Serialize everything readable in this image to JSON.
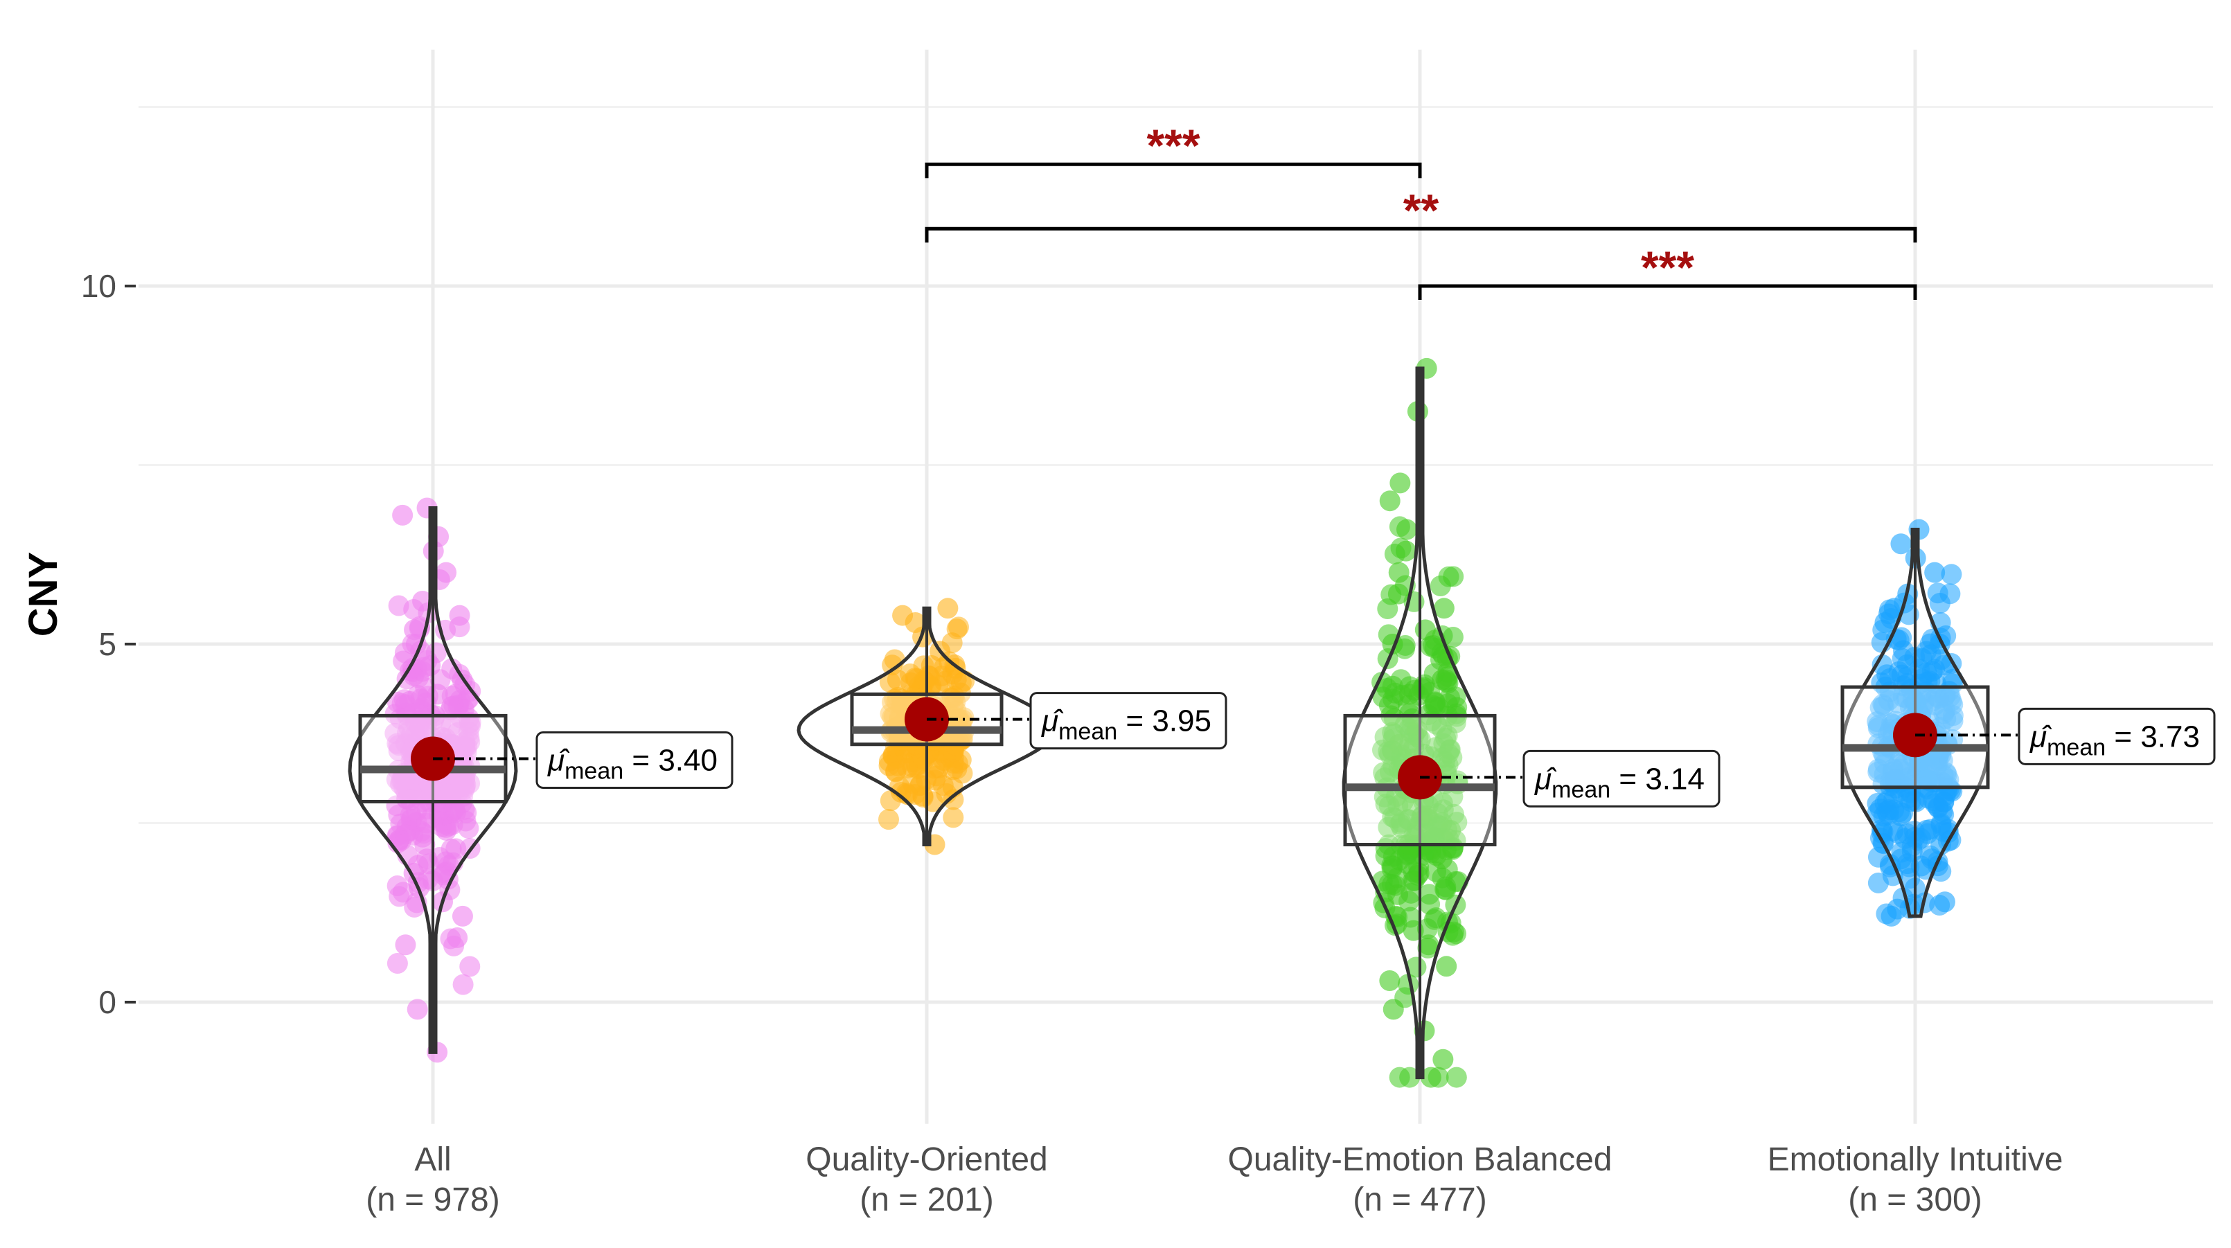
{
  "chart_data": {
    "type": "violin-box-scatter",
    "ylabel": "CNY",
    "xlabel": "",
    "ylim": [
      -1.7,
      13.3
    ],
    "yticks": [
      0,
      5,
      10
    ],
    "grid": true,
    "colors": {
      "All": "#ee82ee",
      "Quality-Oriented": "#ffb31a",
      "Quality-Emotion Balanced": "#44cc22",
      "Emotionally Intuitive": "#1aa3ff",
      "mean_marker": "#a50000",
      "significance": "#a50f0f"
    },
    "groups": [
      {
        "name": "All",
        "n_label": "(n = 978)",
        "n": 978,
        "mean": 3.4,
        "mean_label": "= 3.40",
        "median": 3.25,
        "q1": 2.8,
        "q3": 4.0,
        "min": -0.7,
        "max": 6.9,
        "points": [
          6.9,
          6.8,
          6.5,
          6.3,
          6.0,
          5.9,
          5.6,
          5.4,
          5.2,
          5.0,
          4.9,
          4.7,
          4.5,
          4.3,
          4.2,
          4.0,
          3.9,
          3.7,
          3.6,
          3.5,
          3.4,
          3.3,
          3.2,
          3.1,
          3.0,
          2.9,
          2.8,
          2.7,
          2.5,
          2.4,
          2.2,
          2.0,
          1.8,
          1.6,
          1.4,
          1.2,
          0.9,
          0.8,
          -0.1,
          -0.7
        ]
      },
      {
        "name": "Quality-Oriented",
        "n_label": "(n = 201)",
        "n": 201,
        "mean": 3.95,
        "mean_label": "= 3.95",
        "median": 3.8,
        "q1": 3.6,
        "q3": 4.3,
        "min": 2.2,
        "max": 5.5,
        "points": [
          5.5,
          5.4,
          5.3,
          5.1,
          4.9,
          4.7,
          4.5,
          4.4,
          4.2,
          4.1,
          4.0,
          3.9,
          3.8,
          3.7,
          3.6,
          3.5,
          3.4,
          3.3,
          3.1,
          3.0,
          2.9,
          2.8,
          2.2
        ]
      },
      {
        "name": "Quality-Emotion Balanced",
        "n_label": "(n = 477)",
        "n": 477,
        "mean": 3.14,
        "mean_label": "= 3.14",
        "median": 3.0,
        "q1": 2.2,
        "q3": 4.0,
        "min": -1.05,
        "max": 8.85,
        "points": [
          8.85,
          8.25,
          7.25,
          7.0,
          6.6,
          6.3,
          6.0,
          5.7,
          5.5,
          5.2,
          5.0,
          4.8,
          4.5,
          4.3,
          4.0,
          3.8,
          3.6,
          3.4,
          3.2,
          3.0,
          2.8,
          2.6,
          2.4,
          2.2,
          2.0,
          1.8,
          1.5,
          1.2,
          1.0,
          0.8,
          0.5,
          0.3,
          -0.1,
          -0.4,
          -0.8,
          -1.05
        ]
      },
      {
        "name": "Emotionally Intuitive",
        "n_label": "(n = 300)",
        "n": 300,
        "mean": 3.73,
        "mean_label": "= 3.73",
        "median": 3.55,
        "q1": 3.0,
        "q3": 4.4,
        "min": 1.2,
        "max": 6.6,
        "points": [
          6.6,
          6.4,
          6.2,
          6.0,
          5.7,
          5.5,
          5.3,
          5.0,
          4.8,
          4.6,
          4.4,
          4.2,
          4.0,
          3.8,
          3.7,
          3.6,
          3.5,
          3.4,
          3.3,
          3.1,
          3.0,
          2.8,
          2.6,
          2.4,
          2.2,
          2.0,
          1.9,
          1.4,
          1.3,
          1.2
        ]
      }
    ],
    "comparisons": [
      {
        "from": "Quality-Oriented",
        "to": "Quality-Emotion Balanced",
        "y": 11.7,
        "label": "***"
      },
      {
        "from": "Quality-Oriented",
        "to": "Emotionally Intuitive",
        "y": 10.8,
        "label": "**"
      },
      {
        "from": "Quality-Emotion Balanced",
        "to": "Emotionally Intuitive",
        "y": 10.0,
        "label": "***"
      }
    ],
    "mean_symbol": "μ̂",
    "mean_subscript": "mean"
  }
}
